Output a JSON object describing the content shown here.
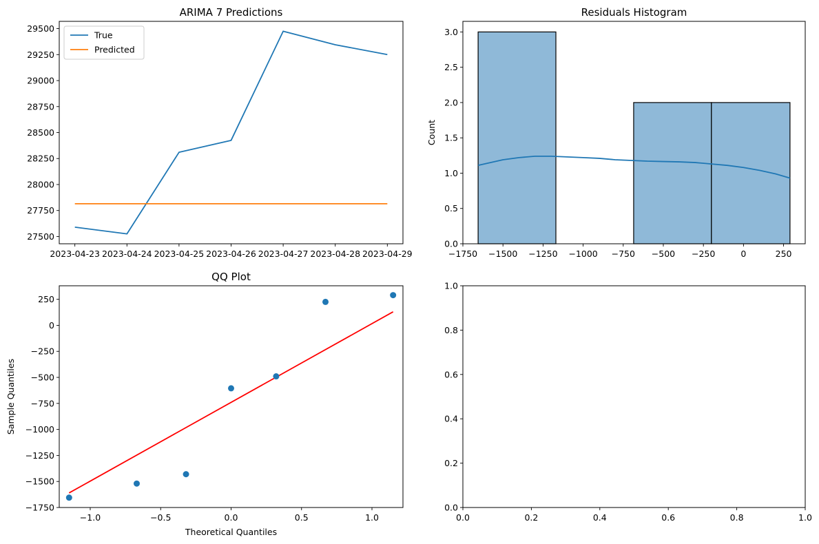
{
  "chart_data": [
    {
      "type": "line",
      "title": "ARIMA 7 Predictions",
      "xlabel": "",
      "ylabel": "",
      "categories": [
        "2023-04-23",
        "2023-04-24",
        "2023-04-25",
        "2023-04-26",
        "2023-04-27",
        "2023-04-28",
        "2023-04-29"
      ],
      "series": [
        {
          "name": "True",
          "color": "#1f77b4",
          "values": [
            27590,
            27525,
            28310,
            28425,
            29475,
            29345,
            29250
          ]
        },
        {
          "name": "Predicted",
          "color": "#ff7f0e",
          "values": [
            27815,
            27815,
            27815,
            27815,
            27815,
            27815,
            27815
          ]
        }
      ],
      "ylim": [
        27430,
        29570
      ],
      "yticks": [
        27500,
        27750,
        28000,
        28250,
        28500,
        28750,
        29000,
        29250,
        29500
      ],
      "legend": "upper-left",
      "grid": false
    },
    {
      "type": "bar",
      "subtype": "histogram-with-kde",
      "title": "Residuals Histogram",
      "xlabel": "",
      "ylabel": "Count",
      "bin_edges": [
        -1655,
        -1170,
        -685,
        -200,
        290
      ],
      "counts": [
        3,
        0,
        2,
        2
      ],
      "bar_color": "#8fb9d8",
      "kde": {
        "color": "#1f77b4",
        "x": [
          -1655,
          -1500,
          -1400,
          -1300,
          -1200,
          -1100,
          -1000,
          -900,
          -800,
          -700,
          -600,
          -500,
          -400,
          -300,
          -200,
          -100,
          0,
          100,
          200,
          290
        ],
        "y": [
          1.11,
          1.19,
          1.22,
          1.24,
          1.24,
          1.23,
          1.22,
          1.21,
          1.19,
          1.18,
          1.17,
          1.165,
          1.16,
          1.15,
          1.13,
          1.11,
          1.08,
          1.04,
          0.99,
          0.93
        ]
      },
      "xlim": [
        -1750,
        385
      ],
      "ylim": [
        0,
        3.15
      ],
      "xticks": [
        -1750,
        -1500,
        -1250,
        -1000,
        -750,
        -500,
        -250,
        0,
        250
      ],
      "xtick_labels": [
        "−1750",
        "−1500",
        "−1250",
        "−1000",
        "−750",
        "−500",
        "−250",
        "0",
        "250"
      ],
      "yticks": [
        0.0,
        0.5,
        1.0,
        1.5,
        2.0,
        2.5,
        3.0
      ],
      "ytick_labels": [
        "0.0",
        "0.5",
        "1.0",
        "1.5",
        "2.0",
        "2.5",
        "3.0"
      ],
      "grid": false
    },
    {
      "type": "scatter",
      "title": "QQ Plot",
      "xlabel": "Theoretical Quantiles",
      "ylabel": "Sample Quantiles",
      "points": {
        "color": "#1f77b4",
        "x": [
          -1.15,
          -0.67,
          -0.32,
          0.0,
          0.32,
          0.67,
          1.15
        ],
        "y": [
          -1655,
          -1520,
          -1430,
          -605,
          -490,
          225,
          290
        ]
      },
      "fit_line": {
        "color": "#ff0000",
        "x": [
          -1.15,
          1.15
        ],
        "y": [
          -1610,
          130
        ]
      },
      "xlim": [
        -1.22,
        1.22
      ],
      "ylim": [
        -1750,
        380
      ],
      "xticks": [
        -1.0,
        -0.5,
        0.0,
        0.5,
        1.0
      ],
      "xtick_labels": [
        "−1.0",
        "−0.5",
        "0.0",
        "0.5",
        "1.0"
      ],
      "yticks": [
        -1750,
        -1500,
        -1250,
        -1000,
        -750,
        -500,
        -250,
        0,
        250
      ],
      "ytick_labels": [
        "−1750",
        "−1500",
        "−1250",
        "−1000",
        "−750",
        "−500",
        "−250",
        "0",
        "250"
      ],
      "grid": false
    },
    {
      "type": "scatter",
      "title": "",
      "xlabel": "",
      "ylabel": "",
      "empty": true,
      "xlim": [
        0,
        1
      ],
      "ylim": [
        0,
        1
      ],
      "xticks": [
        0.0,
        0.2,
        0.4,
        0.6,
        0.8,
        1.0
      ],
      "xtick_labels": [
        "0.0",
        "0.2",
        "0.4",
        "0.6",
        "0.8",
        "1.0"
      ],
      "yticks": [
        0.0,
        0.2,
        0.4,
        0.6,
        0.8,
        1.0
      ],
      "ytick_labels": [
        "0.0",
        "0.2",
        "0.4",
        "0.6",
        "0.8",
        "1.0"
      ],
      "grid": false
    }
  ]
}
